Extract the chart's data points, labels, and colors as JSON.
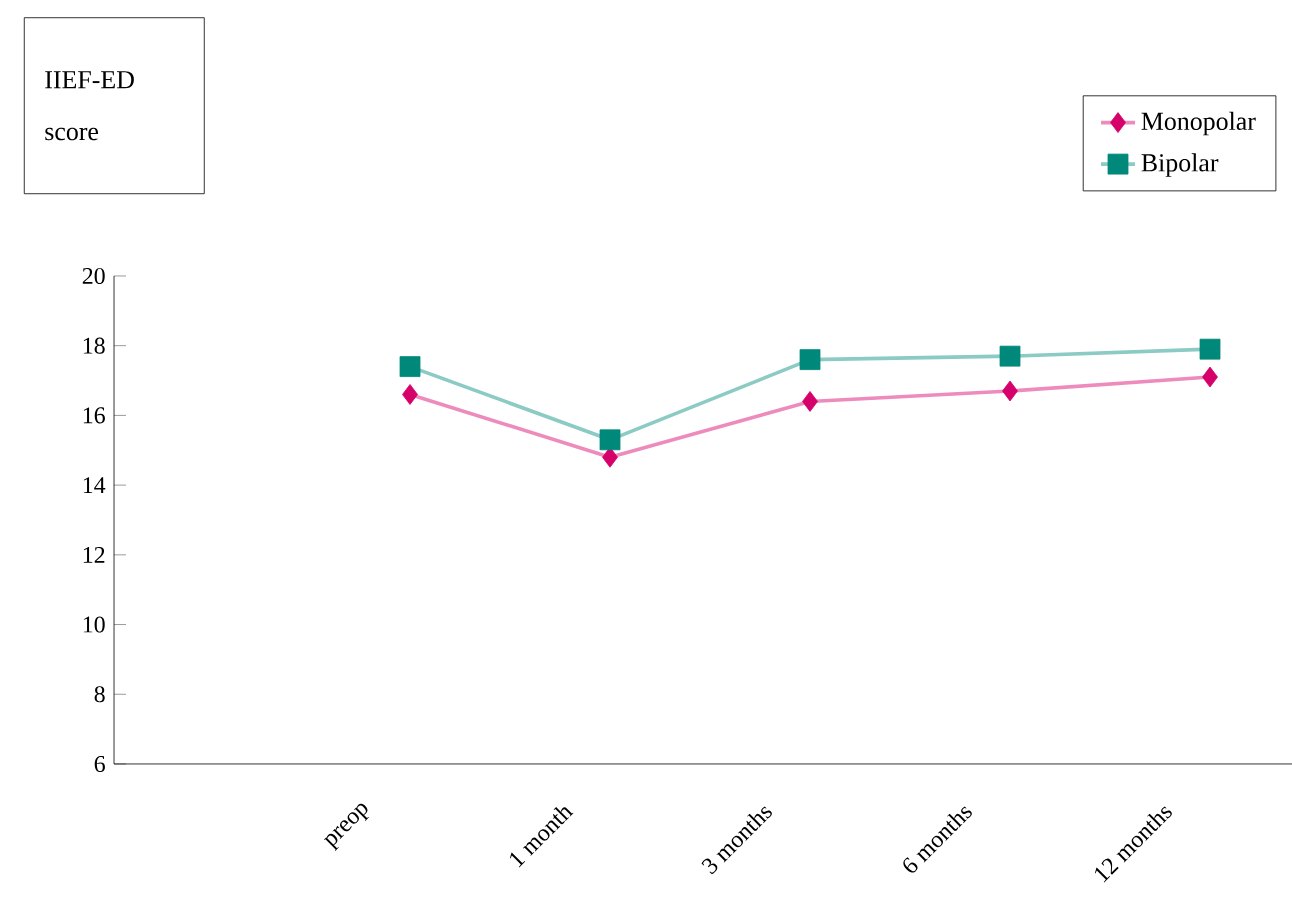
{
  "chart_data": {
    "type": "line",
    "ylabel": "IIEF-ED score",
    "categories": [
      "preop",
      "1 month",
      "3 months",
      "6 months",
      "12 months"
    ],
    "series": [
      {
        "name": "Monopolar",
        "color": "#d6006a",
        "marker": "diamond",
        "values": [
          16.6,
          14.8,
          16.4,
          16.7,
          17.1
        ]
      },
      {
        "name": "Bipolar",
        "color": "#00897b",
        "marker": "square",
        "values": [
          17.4,
          15.3,
          17.6,
          17.7,
          17.9
        ]
      }
    ],
    "ylim": [
      6,
      20
    ],
    "yticks": [
      6,
      8,
      10,
      12,
      14,
      16,
      18,
      20
    ],
    "grid": false,
    "legend": "top right",
    "line_style": "solid"
  }
}
